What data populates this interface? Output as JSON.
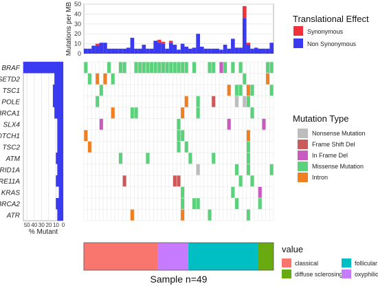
{
  "chart_data": {
    "type": "heatmap",
    "n_samples": 49,
    "genes": [
      "BRAF",
      "SETD2",
      "TSC1",
      "POLE",
      "BRCA1",
      "SLX4",
      "NOTCH1",
      "TSC2",
      "ATM",
      "ARID1A",
      "MRE11A",
      "KRAS",
      "BRCA2",
      "ATR"
    ],
    "categories": {
      "Nonsense Mutation": "#bdbdbd",
      "Frame Shift Del": "#cc5a5a",
      "In Frame Del": "#c95bc0",
      "Missense Mutation": "#5cd17b",
      "Intron": "#f07f22"
    },
    "mutations": [
      {
        "gene": "BRAF",
        "sample": 1,
        "type": "Missense Mutation"
      },
      {
        "gene": "BRAF",
        "sample": 7,
        "type": "Missense Mutation"
      },
      {
        "gene": "BRAF",
        "sample": 10,
        "type": "Missense Mutation"
      },
      {
        "gene": "BRAF",
        "sample": 11,
        "type": "Missense Mutation"
      },
      {
        "gene": "BRAF",
        "sample": 14,
        "type": "Missense Mutation"
      },
      {
        "gene": "BRAF",
        "sample": 15,
        "type": "Missense Mutation"
      },
      {
        "gene": "BRAF",
        "sample": 16,
        "type": "Missense Mutation"
      },
      {
        "gene": "BRAF",
        "sample": 17,
        "type": "Missense Mutation"
      },
      {
        "gene": "BRAF",
        "sample": 18,
        "type": "Missense Mutation"
      },
      {
        "gene": "BRAF",
        "sample": 19,
        "type": "Missense Mutation"
      },
      {
        "gene": "BRAF",
        "sample": 20,
        "type": "Missense Mutation"
      },
      {
        "gene": "BRAF",
        "sample": 21,
        "type": "Missense Mutation"
      },
      {
        "gene": "BRAF",
        "sample": 22,
        "type": "Missense Mutation"
      },
      {
        "gene": "BRAF",
        "sample": 23,
        "type": "Missense Mutation"
      },
      {
        "gene": "BRAF",
        "sample": 24,
        "type": "Missense Mutation"
      },
      {
        "gene": "BRAF",
        "sample": 25,
        "type": "Missense Mutation"
      },
      {
        "gene": "BRAF",
        "sample": 26,
        "type": "Missense Mutation"
      },
      {
        "gene": "BRAF",
        "sample": 27,
        "type": "Missense Mutation"
      },
      {
        "gene": "BRAF",
        "sample": 29,
        "type": "Missense Mutation"
      },
      {
        "gene": "BRAF",
        "sample": 33,
        "type": "Missense Mutation"
      },
      {
        "gene": "BRAF",
        "sample": 34,
        "type": "Missense Mutation"
      },
      {
        "gene": "BRAF",
        "sample": 36,
        "type": "In Frame Del"
      },
      {
        "gene": "BRAF",
        "sample": 37,
        "type": "Missense Mutation"
      },
      {
        "gene": "BRAF",
        "sample": 39,
        "type": "Missense Mutation"
      },
      {
        "gene": "BRAF",
        "sample": 41,
        "type": "Missense Mutation"
      },
      {
        "gene": "BRAF",
        "sample": 48,
        "type": "Missense Mutation"
      },
      {
        "gene": "BRAF",
        "sample": 49,
        "type": "Missense Mutation"
      },
      {
        "gene": "SETD2",
        "sample": 2,
        "type": "Missense Mutation"
      },
      {
        "gene": "SETD2",
        "sample": 4,
        "type": "Intron"
      },
      {
        "gene": "SETD2",
        "sample": 6,
        "type": "Intron"
      },
      {
        "gene": "SETD2",
        "sample": 8,
        "type": "Missense Mutation"
      },
      {
        "gene": "SETD2",
        "sample": 42,
        "type": "Missense Mutation"
      },
      {
        "gene": "SETD2",
        "sample": 48,
        "type": "Intron"
      },
      {
        "gene": "TSC1",
        "sample": 5,
        "type": "Missense Mutation"
      },
      {
        "gene": "TSC1",
        "sample": 38,
        "type": "Intron"
      },
      {
        "gene": "TSC1",
        "sample": 40,
        "type": "Missense Mutation"
      },
      {
        "gene": "TSC1",
        "sample": 41,
        "type": "Missense Mutation"
      },
      {
        "gene": "TSC1",
        "sample": 43,
        "type": "Intron"
      },
      {
        "gene": "TSC1",
        "sample": 44,
        "type": "Missense Mutation"
      },
      {
        "gene": "TSC1",
        "sample": 49,
        "type": "Missense Mutation"
      },
      {
        "gene": "POLE",
        "sample": 4,
        "type": "Missense Mutation"
      },
      {
        "gene": "POLE",
        "sample": 27,
        "type": "Intron"
      },
      {
        "gene": "POLE",
        "sample": 30,
        "type": "Missense Mutation"
      },
      {
        "gene": "POLE",
        "sample": 34,
        "type": "Frame Shift Del"
      },
      {
        "gene": "POLE",
        "sample": 40,
        "type": "Nonsense Mutation"
      },
      {
        "gene": "POLE",
        "sample": 42,
        "type": "Nonsense Mutation"
      },
      {
        "gene": "POLE",
        "sample": 43,
        "type": "Missense Mutation"
      },
      {
        "gene": "BRCA1",
        "sample": 8,
        "type": "Intron"
      },
      {
        "gene": "BRCA1",
        "sample": 13,
        "type": "Missense Mutation"
      },
      {
        "gene": "BRCA1",
        "sample": 14,
        "type": "Missense Mutation"
      },
      {
        "gene": "BRCA1",
        "sample": 26,
        "type": "Intron"
      },
      {
        "gene": "BRCA1",
        "sample": 30,
        "type": "Missense Mutation"
      },
      {
        "gene": "BRCA1",
        "sample": 44,
        "type": "Missense Mutation"
      },
      {
        "gene": "SLX4",
        "sample": 5,
        "type": "In Frame Del"
      },
      {
        "gene": "SLX4",
        "sample": 25,
        "type": "Missense Mutation"
      },
      {
        "gene": "SLX4",
        "sample": 38,
        "type": "In Frame Del"
      },
      {
        "gene": "SLX4",
        "sample": 47,
        "type": "In Frame Del"
      },
      {
        "gene": "NOTCH1",
        "sample": 1,
        "type": "Intron"
      },
      {
        "gene": "NOTCH1",
        "sample": 25,
        "type": "Missense Mutation"
      },
      {
        "gene": "NOTCH1",
        "sample": 26,
        "type": "Missense Mutation"
      },
      {
        "gene": "NOTCH1",
        "sample": 43,
        "type": "Intron"
      },
      {
        "gene": "TSC2",
        "sample": 2,
        "type": "Intron"
      },
      {
        "gene": "TSC2",
        "sample": 25,
        "type": "Missense Mutation"
      },
      {
        "gene": "TSC2",
        "sample": 27,
        "type": "Missense Mutation"
      },
      {
        "gene": "TSC2",
        "sample": 43,
        "type": "Missense Mutation"
      },
      {
        "gene": "ATM",
        "sample": 10,
        "type": "Missense Mutation"
      },
      {
        "gene": "ATM",
        "sample": 17,
        "type": "Missense Mutation"
      },
      {
        "gene": "ATM",
        "sample": 28,
        "type": "Missense Mutation"
      },
      {
        "gene": "ATM",
        "sample": 34,
        "type": "Missense Mutation"
      },
      {
        "gene": "ATM",
        "sample": 43,
        "type": "Missense Mutation"
      },
      {
        "gene": "ARID1A",
        "sample": 30,
        "type": "Nonsense Mutation"
      },
      {
        "gene": "ARID1A",
        "sample": 40,
        "type": "Missense Mutation"
      },
      {
        "gene": "ARID1A",
        "sample": 43,
        "type": "Missense Mutation"
      },
      {
        "gene": "ARID1A",
        "sample": 49,
        "type": "Missense Mutation"
      },
      {
        "gene": "MRE11A",
        "sample": 11,
        "type": "Frame Shift Del"
      },
      {
        "gene": "MRE11A",
        "sample": 24,
        "type": "Frame Shift Del"
      },
      {
        "gene": "MRE11A",
        "sample": 25,
        "type": "Frame Shift Del"
      },
      {
        "gene": "MRE11A",
        "sample": 41,
        "type": "Missense Mutation"
      },
      {
        "gene": "MRE11A",
        "sample": 44,
        "type": "Missense Mutation"
      },
      {
        "gene": "KRAS",
        "sample": 26,
        "type": "Missense Mutation"
      },
      {
        "gene": "KRAS",
        "sample": 39,
        "type": "Missense Mutation"
      },
      {
        "gene": "KRAS",
        "sample": 46,
        "type": "In Frame Del"
      },
      {
        "gene": "BRCA2",
        "sample": 26,
        "type": "Missense Mutation"
      },
      {
        "gene": "BRCA2",
        "sample": 29,
        "type": "Missense Mutation"
      },
      {
        "gene": "BRCA2",
        "sample": 30,
        "type": "Missense Mutation"
      },
      {
        "gene": "BRCA2",
        "sample": 40,
        "type": "Missense Mutation"
      },
      {
        "gene": "BRCA2",
        "sample": 46,
        "type": "Missense Mutation"
      },
      {
        "gene": "ATR",
        "sample": 13,
        "type": "Intron"
      },
      {
        "gene": "ATR",
        "sample": 26,
        "type": "Intron"
      },
      {
        "gene": "ATR",
        "sample": 33,
        "type": "Missense Mutation"
      },
      {
        "gene": "ATR",
        "sample": 43,
        "type": "Missense Mutation"
      }
    ],
    "tmb": {
      "ylabel": "Mutations per MB",
      "yticks": [
        0,
        10,
        20,
        30,
        40,
        50
      ],
      "ylim": [
        0,
        50
      ],
      "series": [
        {
          "name": "Synonymous",
          "color": "#f0323c",
          "values": [
            0,
            0,
            0,
            2,
            0,
            0,
            0,
            0,
            0,
            0,
            0,
            0,
            0,
            0,
            0,
            0,
            0,
            0,
            0,
            3,
            2,
            0,
            2,
            0,
            0,
            0,
            0,
            0,
            0,
            0,
            0,
            0,
            0,
            0,
            0,
            0,
            0,
            0,
            0,
            0,
            0,
            12,
            2,
            0,
            0,
            0,
            0,
            0,
            0
          ]
        },
        {
          "name": "Non Synonymous",
          "color": "#3a3af0",
          "values": [
            5,
            5,
            8,
            8,
            11,
            11,
            5,
            5,
            5,
            5,
            5,
            6,
            16,
            5,
            5,
            9,
            5,
            5,
            13,
            11,
            10,
            5,
            11,
            9,
            4,
            10,
            7,
            5,
            6,
            20,
            7,
            5,
            5,
            5,
            5,
            4,
            9,
            5,
            15,
            6,
            6,
            36,
            9,
            5,
            6,
            5,
            5,
            5,
            11
          ]
        }
      ]
    },
    "pct_mutant": {
      "xlabel": "% Mutant",
      "ticks": [
        50,
        40,
        30,
        20,
        10,
        0
      ],
      "xlim": [
        0,
        55
      ],
      "values": [
        55.1,
        12.2,
        14.3,
        14.3,
        12.2,
        8.2,
        8.2,
        8.2,
        10.2,
        8.2,
        10.2,
        6.1,
        10.2,
        8.2
      ]
    },
    "subtype": {
      "title": "value",
      "legend": [
        {
          "name": "classical",
          "color": "#f8766d"
        },
        {
          "name": "diffuse sclerosing",
          "color": "#6aaa11"
        },
        {
          "name": "follicular",
          "color": "#00bfc4"
        },
        {
          "name": "oxyphilic",
          "color": "#c77cff"
        }
      ],
      "blocks": [
        {
          "name": "classical",
          "count": 19
        },
        {
          "name": "oxyphilic",
          "count": 8
        },
        {
          "name": "follicular",
          "count": 18
        },
        {
          "name": "diffuse sclerosing",
          "count": 4
        }
      ],
      "xlabel": "Sample n=49"
    },
    "legends": {
      "effect_title": "Translational Effect",
      "mutation_title": "Mutation Type"
    }
  }
}
